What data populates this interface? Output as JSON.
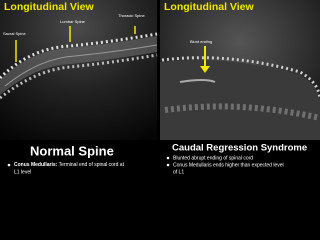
{
  "left_panel": {
    "view_title": "Longitudinal View",
    "labels": [
      "Lumbar Spine",
      "Thoracic Spine",
      "Sacral Spine"
    ],
    "caption": "Normal Spine",
    "bullets": [
      {
        "term": "Conus Medullaris:",
        "text": "Terminal end of spinal cord at",
        "text_cont": "L1 level"
      }
    ]
  },
  "right_panel": {
    "view_title": "Longitudinal View",
    "labels": [
      "Blunt ending"
    ],
    "caption": "Caudal Regression Syndrome",
    "bullets": [
      {
        "text": "Blunted abrupt ending of spinal cord"
      },
      {
        "text": "Conus Medullaris ends higher than expected level",
        "text_cont": "of L1"
      }
    ]
  }
}
